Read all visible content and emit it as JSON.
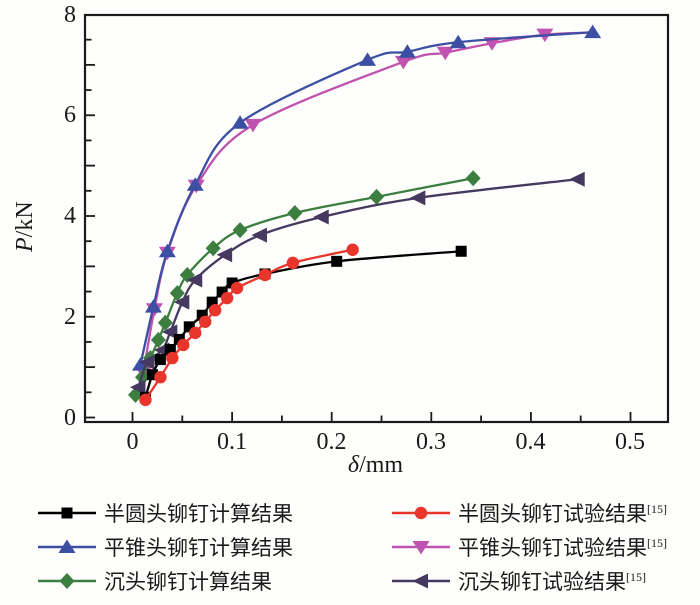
{
  "chart_data": {
    "type": "line",
    "title": "",
    "x_axis": {
      "symbol": "δ",
      "unit": "/mm",
      "min": 0,
      "max": 0.5,
      "major_ticks": [
        0,
        0.1,
        0.2,
        0.3,
        0.4,
        0.5
      ],
      "tick_labels": [
        "0",
        "0.1",
        "0.2",
        "0.3",
        "0.4",
        "0.5"
      ],
      "minor_step": 0.05
    },
    "y_axis": {
      "symbol": "P",
      "unit": "/kN",
      "min": 0,
      "max": 8,
      "major_ticks": [
        0,
        2,
        4,
        6,
        8
      ],
      "tick_labels": [
        "0",
        "2",
        "4",
        "6",
        "8"
      ],
      "minor_step": 0.5
    },
    "grid": false,
    "legend_position": "bottom",
    "frame_color": "#1a1a1a",
    "series": [
      {
        "name": "半圆头铆钉计算结果",
        "ref": "",
        "marker": "square",
        "color": "#000000",
        "points": [
          [
            0.013,
            0.4
          ],
          [
            0.02,
            0.85
          ],
          [
            0.028,
            1.15
          ],
          [
            0.038,
            1.35
          ],
          [
            0.047,
            1.55
          ],
          [
            0.057,
            1.8
          ],
          [
            0.07,
            2.03
          ],
          [
            0.08,
            2.29
          ],
          [
            0.09,
            2.49
          ],
          [
            0.1,
            2.67
          ],
          [
            0.133,
            2.85
          ],
          [
            0.205,
            3.1
          ],
          [
            0.33,
            3.3
          ]
        ]
      },
      {
        "name": "平锥头铆钉计算结果",
        "ref": "",
        "marker": "triangle-up",
        "color": "#3c4fa3",
        "points": [
          [
            0.008,
            1.05
          ],
          [
            0.021,
            2.2
          ],
          [
            0.035,
            3.3
          ],
          [
            0.063,
            4.62
          ],
          [
            0.108,
            5.85
          ],
          [
            0.236,
            7.1
          ],
          [
            0.276,
            7.26
          ],
          [
            0.327,
            7.45
          ],
          [
            0.462,
            7.65
          ]
        ]
      },
      {
        "name": "沉头铆钉计算结果",
        "ref": "",
        "marker": "diamond",
        "color": "#3c7e40",
        "points": [
          [
            0.003,
            0.45
          ],
          [
            0.01,
            0.8
          ],
          [
            0.018,
            1.18
          ],
          [
            0.026,
            1.54
          ],
          [
            0.033,
            1.88
          ],
          [
            0.045,
            2.47
          ],
          [
            0.055,
            2.83
          ],
          [
            0.081,
            3.36
          ],
          [
            0.108,
            3.72
          ],
          [
            0.163,
            4.06
          ],
          [
            0.245,
            4.38
          ],
          [
            0.342,
            4.75
          ]
        ]
      },
      {
        "name": "半圆头铆钉试验结果",
        "ref": "[15]",
        "marker": "circle",
        "color": "#e8352b",
        "points": [
          [
            0.013,
            0.35
          ],
          [
            0.028,
            0.8
          ],
          [
            0.04,
            1.18
          ],
          [
            0.051,
            1.44
          ],
          [
            0.063,
            1.68
          ],
          [
            0.073,
            1.9
          ],
          [
            0.083,
            2.13
          ],
          [
            0.095,
            2.37
          ],
          [
            0.105,
            2.57
          ],
          [
            0.133,
            2.83
          ],
          [
            0.161,
            3.07
          ],
          [
            0.221,
            3.33
          ]
        ]
      },
      {
        "name": "平锥头铆钉试验结果",
        "ref": "[15]",
        "marker": "triangle-down",
        "color": "#c052b0",
        "points": [
          [
            0.011,
            0.9
          ],
          [
            0.022,
            2.15
          ],
          [
            0.035,
            3.27
          ],
          [
            0.064,
            4.6
          ],
          [
            0.121,
            5.81
          ],
          [
            0.272,
            7.06
          ],
          [
            0.314,
            7.24
          ],
          [
            0.361,
            7.43
          ],
          [
            0.414,
            7.6
          ]
        ],
        "line_end": [
          0.46,
          7.64
        ]
      },
      {
        "name": "沉头铆钉试验结果",
        "ref": "[15]",
        "marker": "triangle-left",
        "color": "#46395f",
        "points": [
          [
            0.006,
            0.6
          ],
          [
            0.015,
            1.1
          ],
          [
            0.03,
            1.34
          ],
          [
            0.038,
            1.7
          ],
          [
            0.05,
            2.29
          ],
          [
            0.063,
            2.73
          ],
          [
            0.093,
            3.23
          ],
          [
            0.128,
            3.62
          ],
          [
            0.19,
            3.98
          ],
          [
            0.287,
            4.36
          ],
          [
            0.447,
            4.73
          ]
        ]
      }
    ],
    "draw_order": [
      4,
      1,
      2,
      5,
      0,
      3
    ]
  }
}
